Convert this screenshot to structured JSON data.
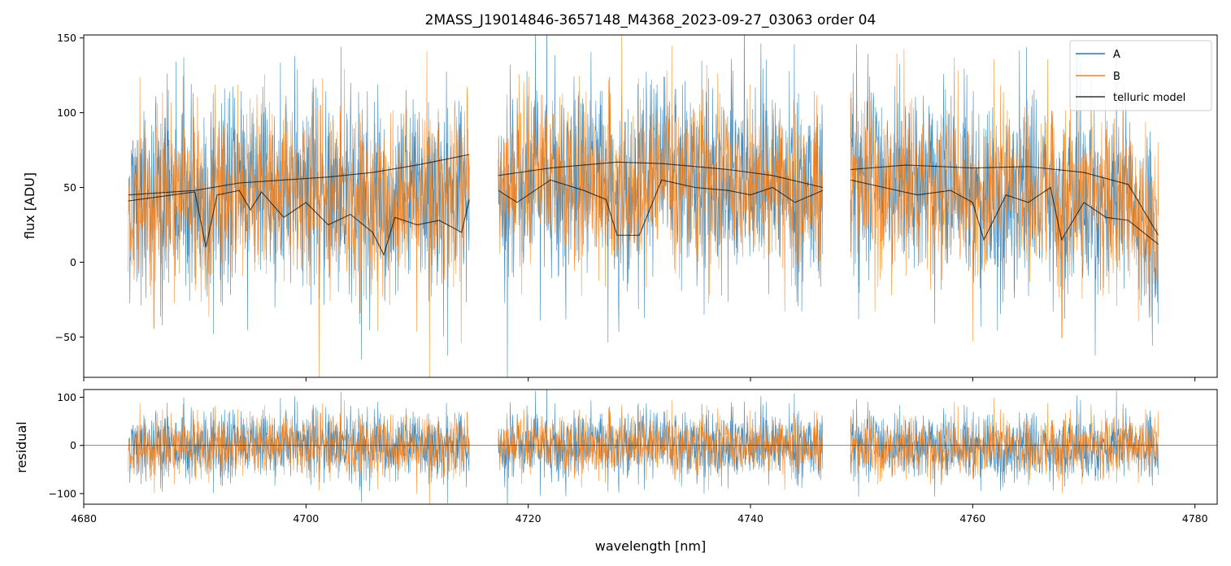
{
  "chart_data": [
    {
      "type": "line",
      "title": "2MASS_J19014846-3657148_M4368_2023-09-27_03063  order 04",
      "xlabel": "",
      "ylabel": "flux [ADU]",
      "xlim": [
        4680,
        4782
      ],
      "ylim": [
        -77,
        152
      ],
      "yticks": [
        -50,
        0,
        50,
        100,
        150
      ],
      "yticklabels": [
        "−50",
        "0",
        "50",
        "100",
        "150"
      ],
      "xticks": [
        4680,
        4700,
        4720,
        4740,
        4760,
        4780
      ],
      "legend": {
        "placement": "top-right",
        "entries": [
          "A",
          "B",
          "telluric model"
        ]
      },
      "colors": {
        "A": "#1f77b4",
        "B": "#ff7f0e",
        "model": "#000000"
      },
      "segments": [
        [
          4684.0,
          4714.7
        ],
        [
          4717.3,
          4746.5
        ],
        [
          4749.0,
          4776.7
        ]
      ],
      "noise_sigma": {
        "A": 30,
        "B": 26
      },
      "series": [
        {
          "name": "telluric model",
          "x": [
            4684,
            4687,
            4690,
            4691,
            4692,
            4694,
            4695,
            4696,
            4698,
            4700,
            4702,
            4704,
            4706,
            4707,
            4708,
            4710,
            4712,
            4714,
            4714.7,
            4717.3,
            4719,
            4722,
            4725,
            4727,
            4728,
            4730,
            4732,
            4735,
            4738,
            4740,
            4742,
            4744,
            4746.5,
            4749,
            4752,
            4755,
            4758,
            4760,
            4761,
            4763,
            4765,
            4767,
            4768,
            4770,
            4772,
            4774,
            4776.7
          ],
          "y": [
            41,
            44,
            47,
            10,
            45,
            48,
            35,
            47,
            30,
            40,
            25,
            32,
            20,
            5,
            30,
            25,
            28,
            20,
            42,
            48,
            40,
            55,
            48,
            42,
            18,
            18,
            55,
            50,
            48,
            45,
            50,
            40,
            48,
            55,
            50,
            45,
            48,
            40,
            15,
            45,
            40,
            50,
            15,
            40,
            30,
            28,
            12
          ]
        },
        {
          "name": "telluric model (upper)",
          "x": [
            4684,
            4690,
            4694,
            4698,
            4702,
            4706,
            4710,
            4714.7,
            4717.3,
            4722,
            4728,
            4732,
            4738,
            4742,
            4746.5,
            4749,
            4754,
            4760,
            4765,
            4770,
            4774,
            4776.7
          ],
          "y": [
            45,
            48,
            53,
            55,
            57,
            60,
            65,
            72,
            58,
            63,
            67,
            66,
            62,
            58,
            50,
            62,
            65,
            63,
            64,
            60,
            52,
            18
          ]
        }
      ]
    },
    {
      "type": "line",
      "title": "",
      "xlabel": "wavelength [nm]",
      "ylabel": "residual",
      "xlim": [
        4680,
        4782
      ],
      "ylim": [
        -122,
        116
      ],
      "yticks": [
        -100,
        0,
        100
      ],
      "yticklabels": [
        "−100",
        "0",
        "100"
      ],
      "xticks": [
        4680,
        4700,
        4720,
        4740,
        4760,
        4780
      ],
      "reference_line": 0,
      "series": [
        {
          "name": "A",
          "color": "#1f77b4"
        },
        {
          "name": "B",
          "color": "#ff7f0e"
        }
      ]
    }
  ]
}
